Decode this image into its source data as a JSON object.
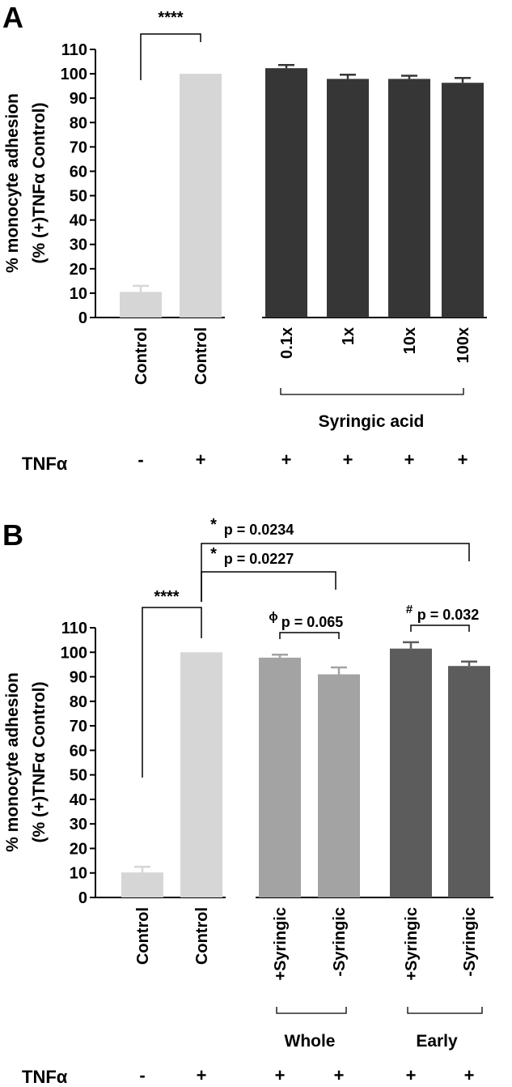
{
  "panels": {
    "a": {
      "letter": "A",
      "tnf_label": "TNFα",
      "group_label": "Syringic acid"
    },
    "b": {
      "letter": "B",
      "tnf_label": "TNFα",
      "group_labels": [
        "Whole",
        "Early"
      ]
    }
  },
  "chart_data": [
    {
      "type": "bar",
      "panel": "A",
      "ylabel_line1": "% monocyte adhesion",
      "ylabel_line2": "(% (+)TNFα Control)",
      "ylim": [
        0,
        110
      ],
      "yticks": [
        0,
        10,
        20,
        30,
        40,
        50,
        60,
        70,
        80,
        90,
        100,
        110
      ],
      "categories": [
        "Control",
        "Control",
        "0.1x",
        "1x",
        "10x",
        "100x"
      ],
      "values": [
        10.5,
        100,
        102.3,
        97.9,
        97.9,
        96.3
      ],
      "errors": [
        2.5,
        0,
        1.3,
        1.7,
        1.3,
        2.0
      ],
      "colors": [
        "#d6d6d6",
        "#d6d6d6",
        "#363636",
        "#363636",
        "#363636",
        "#363636"
      ],
      "tnf": [
        "-",
        "+",
        "+",
        "+",
        "+",
        "+"
      ],
      "annotations": [
        {
          "text": "****",
          "from": 0,
          "to": 1
        }
      ]
    },
    {
      "type": "bar",
      "panel": "B",
      "ylabel_line1": "% monocyte adhesion",
      "ylabel_line2": "(% (+)TNFα Control)",
      "ylim": [
        0,
        110
      ],
      "yticks": [
        0,
        10,
        20,
        30,
        40,
        50,
        60,
        70,
        80,
        90,
        100,
        110
      ],
      "categories": [
        "Control",
        "Control",
        "+Syringic",
        "-Syringic",
        "+Syringic",
        "-Syringic"
      ],
      "values": [
        10.2,
        100,
        97.8,
        91.0,
        101.5,
        94.4
      ],
      "errors": [
        2.3,
        0,
        1.2,
        2.8,
        2.6,
        1.8
      ],
      "colors": [
        "#d6d6d6",
        "#d6d6d6",
        "#a3a3a3",
        "#a3a3a3",
        "#5c5c5c",
        "#5c5c5c"
      ],
      "tnf": [
        "-",
        "+",
        "+",
        "+",
        "+",
        "+"
      ],
      "annotations": [
        {
          "text": "****",
          "from": 0,
          "to": 1
        },
        {
          "symbol": "ϕ",
          "text": "p = 0.065",
          "from": 2,
          "to": 3
        },
        {
          "symbol": "#",
          "text": "p = 0.032",
          "from": 4,
          "to": 5
        },
        {
          "symbol": "*",
          "text": "p = 0.0227",
          "from": 1,
          "to": 3
        },
        {
          "symbol": "*",
          "text": "p = 0.0234",
          "from": 1,
          "to": 5
        }
      ]
    }
  ]
}
